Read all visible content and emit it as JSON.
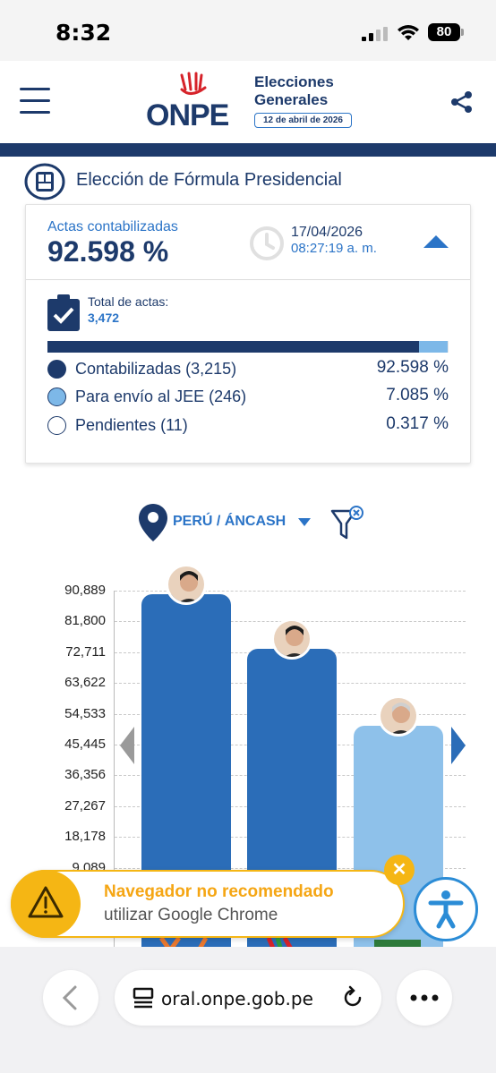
{
  "status_bar": {
    "time": "8:32",
    "battery": "80"
  },
  "header": {
    "logo_text": "ONPE",
    "title_line1": "Elecciones",
    "title_line2": "Generales",
    "date_badge": "12 de abril de 2026"
  },
  "section": {
    "title": "Elección de Fórmula Presidencial"
  },
  "summary": {
    "actas_label": "Actas contabilizadas",
    "actas_value": "92.598 %",
    "updated_date": "17/04/2026",
    "updated_time": "08:27:19 a. m.",
    "total_label": "Total de actas:",
    "total_value": "3,472",
    "progress": {
      "contabilizadas": 92.598,
      "jee": 7.085,
      "pendientes": 0.317
    },
    "legend": [
      {
        "label": "Contabilizadas (3,215)",
        "pct": "92.598 %",
        "color": "#1d3a6b"
      },
      {
        "label": "Para envío al JEE (246)",
        "pct": "7.085 %",
        "color": "#7db8e8"
      },
      {
        "label": "Pendientes (11)",
        "pct": "0.317 %",
        "color": "#ffffff"
      }
    ]
  },
  "filter": {
    "region": "PERÚ / ÁNCASH"
  },
  "chart_data": {
    "type": "bar",
    "y_ticks": [
      "90,889",
      "81,800",
      "72,711",
      "63,622",
      "54,533",
      "45,445",
      "36,356",
      "27,267",
      "18,178",
      "9,089"
    ],
    "ylim": [
      0,
      90889
    ],
    "values": [
      89800,
      73600,
      51000
    ],
    "colors": [
      "#2b6db8",
      "#2b6db8",
      "#8ec1ea"
    ]
  },
  "toast": {
    "title": "Navegador no recomendado",
    "subtitle": "utilizar Google Chrome",
    "close": "✕"
  },
  "browser": {
    "url": "oral.onpe.gob.pe"
  },
  "colors": {
    "navy": "#1d3a6b",
    "blue": "#2b74c7",
    "light_blue": "#7db8e8",
    "warning": "#f5b614"
  }
}
